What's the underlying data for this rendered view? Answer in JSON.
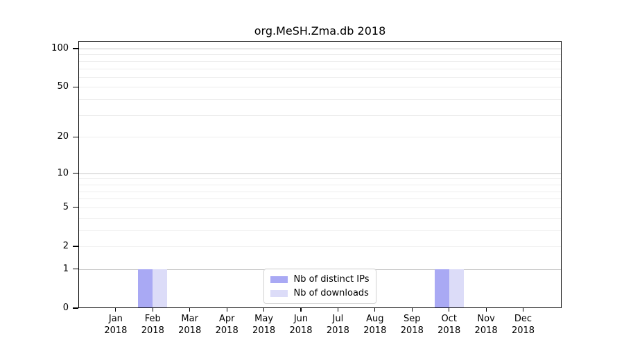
{
  "chart_data": {
    "type": "bar",
    "title": "org.MeSH.Zma.db 2018",
    "categories": [
      "Jan",
      "Feb",
      "Mar",
      "Apr",
      "May",
      "Jun",
      "Jul",
      "Aug",
      "Sep",
      "Oct",
      "Nov",
      "Dec"
    ],
    "year_label": "2018",
    "series": [
      {
        "name": "Nb of distinct IPs",
        "color": "#a9a9f4",
        "values": [
          0,
          1,
          0,
          0,
          0,
          0,
          0,
          0,
          0,
          1,
          0,
          0
        ]
      },
      {
        "name": "Nb of downloads",
        "color": "#dcdcf8",
        "values": [
          0,
          1,
          0,
          0,
          0,
          0,
          0,
          0,
          0,
          1,
          0,
          0
        ]
      }
    ],
    "y_axis": {
      "scale": "log1p",
      "tick_values": [
        0,
        1,
        2,
        5,
        10,
        20,
        50,
        100
      ],
      "tick_labels": [
        "0",
        "1",
        "2",
        "5",
        "10",
        "20",
        "50",
        "100"
      ],
      "major_gridlines": [
        1,
        10,
        100
      ],
      "minor_gridlines": [
        2,
        3,
        4,
        5,
        6,
        7,
        8,
        9,
        20,
        30,
        40,
        50,
        60,
        70,
        80,
        90
      ],
      "max": 100
    },
    "x_axis": {
      "tick_count": 12
    },
    "legend": {
      "position": "bottom-center",
      "border_color": "#d2d2d2"
    },
    "grid": true,
    "colors": {
      "major_grid": "#c6c6c6",
      "minor_grid": "#ededed",
      "spine": "#000000"
    }
  }
}
